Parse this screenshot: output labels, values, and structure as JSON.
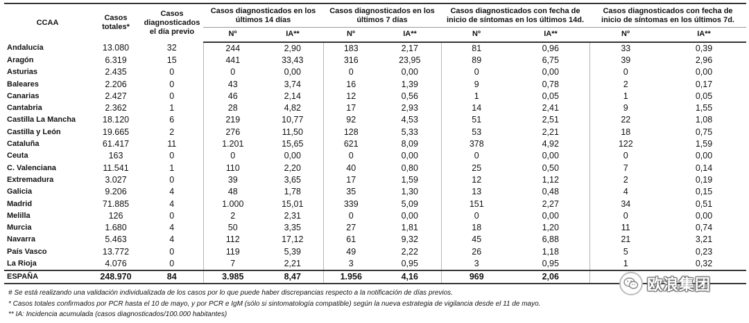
{
  "header": {
    "ccaa": "CCAA",
    "casos_totales": [
      "Casos",
      "totales*"
    ],
    "casos_previo": [
      "Casos",
      "diagnosticados",
      "el día previo"
    ],
    "groups": [
      [
        "Casos diagnosticados en los",
        "últimos 14 días"
      ],
      [
        "Casos diagnosticados en los",
        "últimos 7 días"
      ],
      [
        "Casos diagnosticados con fecha de",
        "inicio de síntomas en los últimos 14d."
      ],
      [
        "Casos diagnosticados con fecha de",
        "inicio de síntomas en los últimos 7d."
      ]
    ],
    "sub_n": "Nº",
    "sub_ia": "IA**"
  },
  "rows": [
    [
      "Andalucía",
      "13.080",
      "32",
      "244",
      "2,90",
      "183",
      "2,17",
      "81",
      "0,96",
      "33",
      "0,39"
    ],
    [
      "Aragón",
      "6.319",
      "15",
      "441",
      "33,43",
      "316",
      "23,95",
      "89",
      "6,75",
      "39",
      "2,96"
    ],
    [
      "Asturias",
      "2.435",
      "0",
      "0",
      "0,00",
      "0",
      "0,00",
      "0",
      "0,00",
      "0",
      "0,00"
    ],
    [
      "Baleares",
      "2.206",
      "0",
      "43",
      "3,74",
      "16",
      "1,39",
      "9",
      "0,78",
      "2",
      "0,17"
    ],
    [
      "Canarias",
      "2.427",
      "0",
      "46",
      "2,14",
      "12",
      "0,56",
      "1",
      "0,05",
      "1",
      "0,05"
    ],
    [
      "Cantabria",
      "2.362",
      "1",
      "28",
      "4,82",
      "17",
      "2,93",
      "14",
      "2,41",
      "9",
      "1,55"
    ],
    [
      "Castilla La Mancha",
      "18.120",
      "6",
      "219",
      "10,77",
      "92",
      "4,53",
      "51",
      "2,51",
      "22",
      "1,08"
    ],
    [
      "Castilla y León",
      "19.665",
      "2",
      "276",
      "11,50",
      "128",
      "5,33",
      "53",
      "2,21",
      "18",
      "0,75"
    ],
    [
      "Cataluña",
      "61.417",
      "11",
      "1.201",
      "15,65",
      "621",
      "8,09",
      "378",
      "4,92",
      "122",
      "1,59"
    ],
    [
      "Ceuta",
      "163",
      "0",
      "0",
      "0,00",
      "0",
      "0,00",
      "0",
      "0,00",
      "0",
      "0,00"
    ],
    [
      "C. Valenciana",
      "11.541",
      "1",
      "110",
      "2,20",
      "40",
      "0,80",
      "25",
      "0,50",
      "7",
      "0,14"
    ],
    [
      "Extremadura",
      "3.027",
      "0",
      "39",
      "3,65",
      "17",
      "1,59",
      "12",
      "1,12",
      "2",
      "0,19"
    ],
    [
      "Galicia",
      "9.206",
      "4",
      "48",
      "1,78",
      "35",
      "1,30",
      "13",
      "0,48",
      "4",
      "0,15"
    ],
    [
      "Madrid",
      "71.885",
      "4",
      "1.000",
      "15,01",
      "339",
      "5,09",
      "151",
      "2,27",
      "34",
      "0,51"
    ],
    [
      "Melilla",
      "126",
      "0",
      "2",
      "2,31",
      "0",
      "0,00",
      "0",
      "0,00",
      "0",
      "0,00"
    ],
    [
      "Murcia",
      "1.680",
      "4",
      "50",
      "3,35",
      "27",
      "1,81",
      "18",
      "1,20",
      "11",
      "0,74"
    ],
    [
      "Navarra",
      "5.463",
      "4",
      "112",
      "17,12",
      "61",
      "9,32",
      "45",
      "6,88",
      "21",
      "3,21"
    ],
    [
      "País Vasco",
      "13.772",
      "0",
      "119",
      "5,39",
      "49",
      "2,22",
      "26",
      "1,18",
      "5",
      "0,23"
    ],
    [
      "La Rioja",
      "4.076",
      "0",
      "7",
      "2,21",
      "3",
      "0,95",
      "3",
      "0,95",
      "1",
      "0,32"
    ]
  ],
  "total": [
    "ESPAÑA",
    "248.970",
    "84",
    "3.985",
    "8,47",
    "1.956",
    "4,16",
    "969",
    "2,06",
    "",
    ""
  ],
  "notes": [
    "# Se está realizando una validación individualizada de los casos por lo que puede haber discrepancias respecto a la notificación de días previos.",
    "* Casos totales confirmados por PCR hasta el 10 de mayo, y por PCR e IgM (sólo si sintomatología compatible) según la nueva estrategia de vigilancia desde el 11 de mayo.",
    "** IA: Incidencia acumulada (casos diagnosticados/100.000 habitantes)"
  ],
  "watermark": "欧浪集团",
  "watermark_icon": "wechat-icon"
}
